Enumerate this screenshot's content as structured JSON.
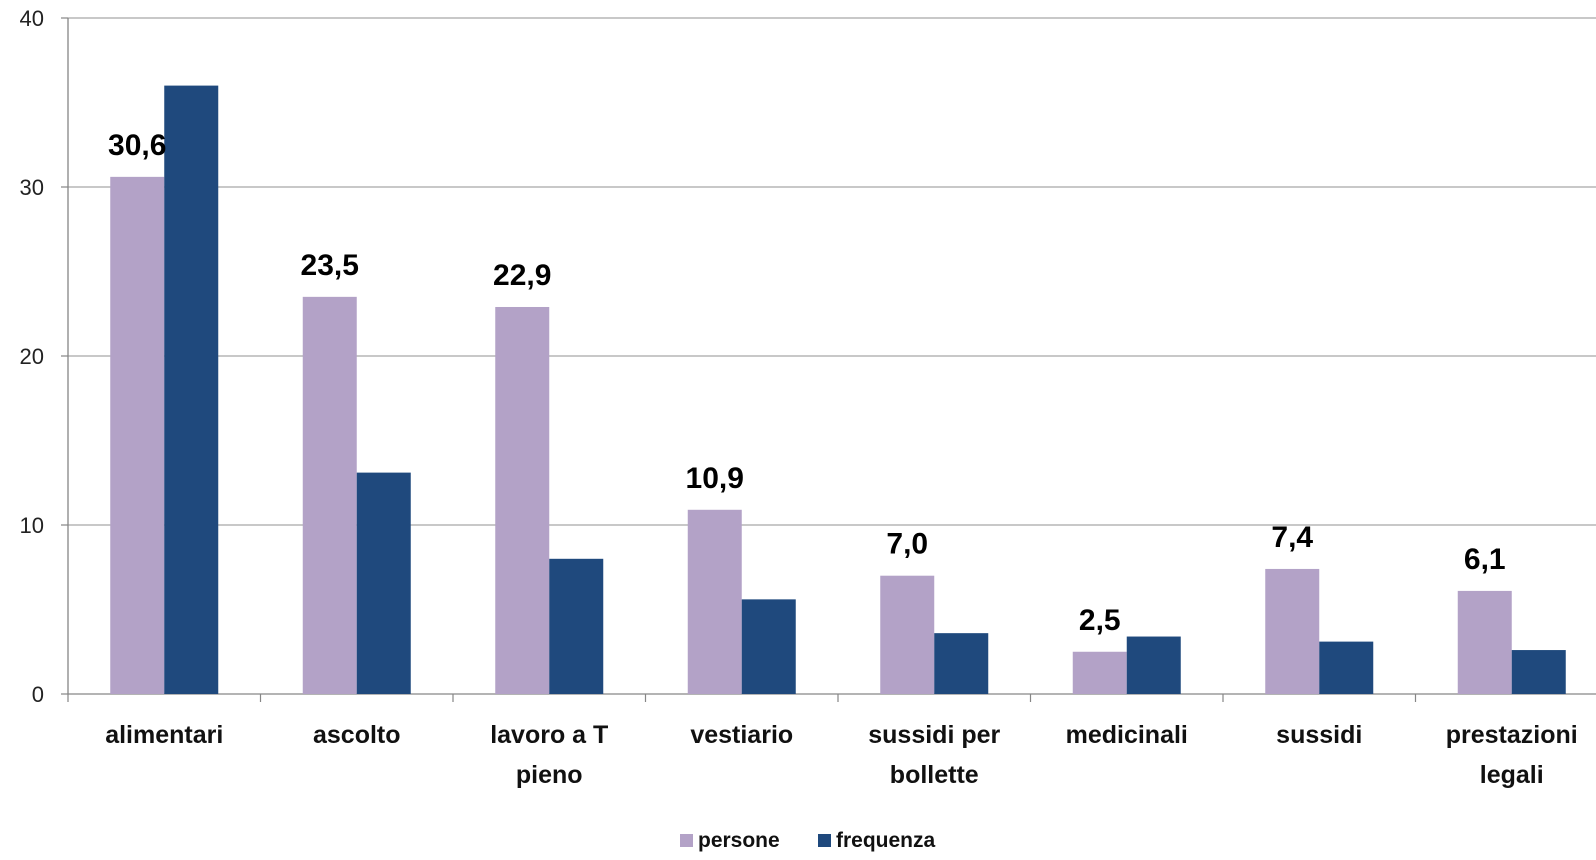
{
  "chart_data": {
    "type": "bar",
    "categories": [
      "alimentari",
      "ascolto",
      "lavoro a T pieno",
      "vestiario",
      "sussidi per bollette",
      "medicinali",
      "sussidi",
      "prestazioni legali"
    ],
    "category_lines": [
      [
        "alimentari"
      ],
      [
        "ascolto"
      ],
      [
        "lavoro a T",
        "pieno"
      ],
      [
        "vestiario"
      ],
      [
        "sussidi per",
        "bollette"
      ],
      [
        "medicinali"
      ],
      [
        "sussidi"
      ],
      [
        "prestazioni",
        "legali"
      ]
    ],
    "series": [
      {
        "name": "persone",
        "color": "#b3a2c7",
        "values": [
          30.6,
          23.5,
          22.9,
          10.9,
          7.0,
          2.5,
          7.4,
          6.1
        ],
        "labels": [
          "30,6",
          "23,5",
          "22,9",
          "10,9",
          "7,0",
          "2,5",
          "7,4",
          "6,1"
        ]
      },
      {
        "name": "frequenza",
        "color": "#1f497d",
        "values": [
          36.0,
          13.1,
          8.0,
          5.6,
          3.6,
          3.4,
          3.1,
          2.6
        ]
      }
    ],
    "ylim": [
      0,
      40
    ],
    "yticks": [
      0,
      10,
      20,
      30,
      40
    ],
    "grid": true,
    "legend_position": "bottom-center",
    "title": "",
    "xlabel": "",
    "ylabel": ""
  }
}
